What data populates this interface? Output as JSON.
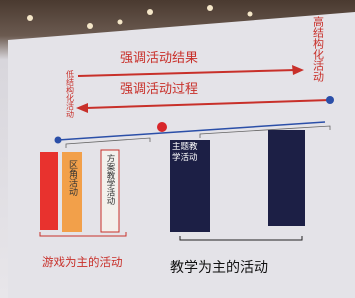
{
  "slide": {
    "top_arrow": {
      "label": "强调活动结果"
    },
    "bottom_arrow": {
      "label": "强调活动过程"
    },
    "left_end": {
      "label": "低结构化活动"
    },
    "right_end": {
      "label": "高结构化活动"
    },
    "boxes": [
      {
        "label": "区角活动"
      },
      {
        "label": "方案教学活动"
      },
      {
        "label": "主题教学活动"
      }
    ],
    "groups": [
      {
        "label": "游戏为主的活动"
      },
      {
        "label": "教学为主的活动"
      }
    ]
  }
}
